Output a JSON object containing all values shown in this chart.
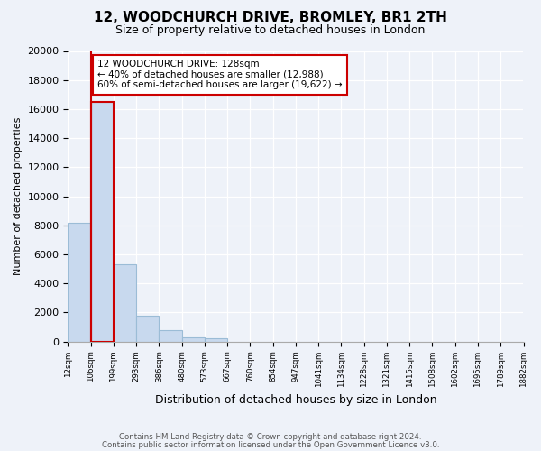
{
  "title": "12, WOODCHURCH DRIVE, BROMLEY, BR1 2TH",
  "subtitle": "Size of property relative to detached houses in London",
  "xlabel": "Distribution of detached houses by size in London",
  "ylabel": "Number of detached properties",
  "bar_values": [
    8200,
    16500,
    5300,
    1750,
    800,
    300,
    250,
    0,
    0,
    0,
    0,
    0,
    0,
    0,
    0,
    0,
    0,
    0,
    0,
    0
  ],
  "bar_labels": [
    "12sqm",
    "106sqm",
    "199sqm",
    "293sqm",
    "386sqm",
    "480sqm",
    "573sqm",
    "667sqm",
    "760sqm",
    "854sqm",
    "947sqm",
    "1041sqm",
    "1134sqm",
    "1228sqm",
    "1321sqm",
    "1415sqm",
    "1508sqm",
    "1602sqm",
    "1695sqm",
    "1789sqm",
    "1882sqm"
  ],
  "bar_color": "#c8d9ee",
  "bar_edge_color": "#9bbcd6",
  "highlight_color": "#cc0000",
  "ylim": [
    0,
    20000
  ],
  "yticks": [
    0,
    2000,
    4000,
    6000,
    8000,
    10000,
    12000,
    14000,
    16000,
    18000,
    20000
  ],
  "annotation_title": "12 WOODCHURCH DRIVE: 128sqm",
  "annotation_line1": "← 40% of detached houses are smaller (12,988)",
  "annotation_line2": "60% of semi-detached houses are larger (19,622) →",
  "annotation_box_color": "#ffffff",
  "annotation_box_edge": "#cc0000",
  "footer_line1": "Contains HM Land Registry data © Crown copyright and database right 2024.",
  "footer_line2": "Contains public sector information licensed under the Open Government Licence v3.0.",
  "background_color": "#eef2f9",
  "plot_background": "#eef2f9",
  "grid_color": "#ffffff"
}
